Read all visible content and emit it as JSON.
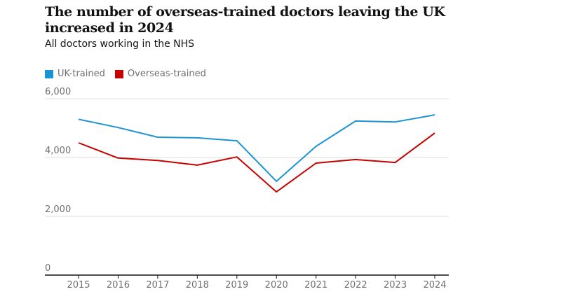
{
  "chart_data": {
    "type": "line",
    "title": "The number of overseas-trained doctors leaving the UK increased in 2024",
    "subtitle": "All doctors working in the NHS",
    "xlabel": "",
    "ylabel": "",
    "x": [
      "2015",
      "2016",
      "2017",
      "2018",
      "2019",
      "2020",
      "2021",
      "2022",
      "2023",
      "2024"
    ],
    "ylim": [
      0,
      6000
    ],
    "yticks": [
      0,
      2000,
      4000,
      6000
    ],
    "ytick_labels": [
      "0",
      "2,000",
      "4,000",
      "6,000"
    ],
    "grid": true,
    "legend_placement": "top-left",
    "series": [
      {
        "name": "UK-trained",
        "color": "#1c94d4",
        "values": [
          5300,
          5020,
          4690,
          4670,
          4570,
          3190,
          4380,
          5240,
          5210,
          5450
        ]
      },
      {
        "name": "Overseas-trained",
        "color": "#c70000",
        "values": [
          4500,
          3980,
          3900,
          3740,
          4020,
          2830,
          3810,
          3930,
          3830,
          4830
        ]
      }
    ]
  }
}
